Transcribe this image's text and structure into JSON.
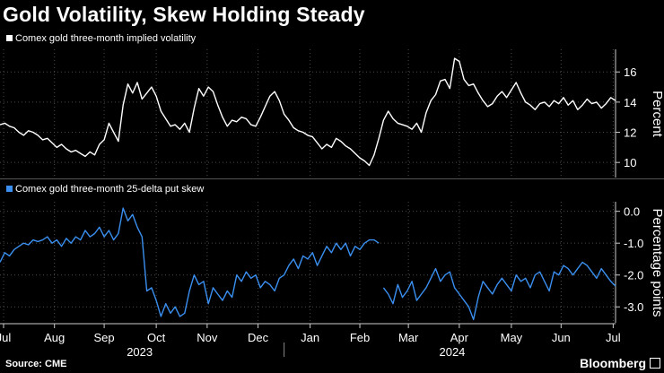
{
  "title": "Gold Volatility, Skew Holding Steady",
  "source": "Source: CME",
  "brand": "Bloomberg",
  "colors": {
    "background": "#000000",
    "series1": "#ffffff",
    "series2": "#3a8ff0",
    "grid": "#4a4a4a",
    "axis": "#cccccc"
  },
  "chart_data": [
    {
      "type": "line",
      "legend": "Comex gold three-month implied volatility",
      "ylabel": "Percent",
      "ylim": [
        9,
        17.5
      ],
      "yticks": [
        10,
        12,
        14,
        16
      ],
      "ytick_labels": [
        "10",
        "12",
        "14",
        "16"
      ],
      "x": [
        0,
        2,
        4,
        6,
        8,
        10,
        12,
        14,
        16,
        18,
        20,
        22,
        24,
        26,
        28,
        30,
        32,
        34,
        36,
        38,
        40,
        42,
        44,
        46,
        48,
        50,
        52,
        54,
        56,
        58,
        60,
        62,
        64,
        66,
        68,
        70,
        72,
        74,
        76,
        78,
        80,
        82,
        84,
        86,
        88,
        90,
        92,
        94,
        96,
        98,
        100,
        102,
        104,
        106,
        108,
        110,
        112,
        114,
        116,
        118,
        120,
        122,
        124,
        126,
        128,
        130,
        132,
        134,
        136,
        138,
        140,
        142,
        144,
        146,
        148,
        150,
        152,
        154,
        156,
        158,
        160,
        162,
        164,
        166,
        168,
        170,
        172,
        174,
        176,
        178,
        180,
        182,
        184,
        186,
        188,
        190,
        192,
        194,
        196,
        198,
        200,
        202,
        204,
        206,
        208,
        210,
        212,
        214,
        216,
        218,
        220,
        222,
        224,
        226,
        228,
        230,
        232,
        234,
        236,
        238,
        240,
        242,
        244,
        246,
        248,
        250,
        252,
        254,
        256,
        258,
        260
      ],
      "values": [
        12.5,
        12.6,
        12.4,
        12.3,
        12.0,
        11.8,
        12.1,
        12.0,
        11.8,
        11.5,
        11.6,
        11.3,
        11.0,
        11.2,
        10.9,
        10.7,
        10.8,
        10.6,
        10.4,
        10.7,
        10.5,
        11.2,
        11.5,
        12.6,
        12.0,
        11.4,
        13.8,
        15.2,
        14.6,
        15.3,
        14.2,
        14.6,
        15.0,
        14.4,
        13.4,
        12.9,
        12.4,
        12.5,
        12.2,
        12.6,
        12.0,
        13.6,
        14.9,
        14.4,
        15.0,
        14.7,
        13.8,
        13.0,
        12.4,
        12.8,
        12.7,
        13.0,
        12.9,
        12.5,
        12.4,
        13.0,
        13.7,
        14.4,
        14.7,
        14.1,
        13.2,
        12.8,
        12.3,
        12.1,
        12.0,
        11.8,
        11.7,
        11.3,
        10.9,
        11.2,
        11.0,
        11.6,
        11.4,
        11.1,
        10.9,
        10.6,
        10.3,
        10.1,
        9.8,
        10.5,
        11.6,
        12.8,
        13.4,
        12.9,
        12.6,
        12.5,
        12.4,
        12.2,
        12.6,
        12.0,
        13.3,
        14.1,
        14.5,
        15.4,
        15.5,
        14.9,
        16.9,
        16.7,
        15.5,
        15.1,
        15.2,
        14.6,
        14.1,
        13.7,
        13.9,
        14.4,
        14.7,
        14.3,
        14.8,
        15.3,
        14.6,
        14.0,
        13.8,
        13.5,
        13.9,
        14.0,
        13.7,
        14.1,
        13.9,
        14.3,
        13.8,
        14.1,
        13.5,
        13.8,
        14.2,
        13.9,
        14.0,
        13.6,
        13.9,
        14.3,
        14.1
      ]
    },
    {
      "type": "line",
      "legend": "Comex gold three-month 25-delta put skew",
      "ylabel": "Percentage points",
      "ylim": [
        -3.5,
        0.3
      ],
      "yticks": [
        0,
        -1,
        -2,
        -3
      ],
      "ytick_labels": [
        "0.0",
        "-1.0",
        "-2.0",
        "-3.0"
      ],
      "x": [
        0,
        2,
        4,
        6,
        8,
        10,
        12,
        14,
        16,
        18,
        20,
        22,
        24,
        26,
        28,
        30,
        32,
        34,
        36,
        38,
        40,
        42,
        44,
        46,
        48,
        50,
        52,
        54,
        56,
        58,
        60,
        62,
        64,
        66,
        68,
        70,
        72,
        74,
        76,
        78,
        80,
        82,
        84,
        86,
        88,
        90,
        92,
        94,
        96,
        98,
        100,
        102,
        104,
        106,
        108,
        110,
        112,
        114,
        116,
        118,
        120,
        122,
        124,
        126,
        128,
        130,
        132,
        134,
        136,
        138,
        140,
        142,
        144,
        146,
        148,
        150,
        152,
        154,
        156,
        158,
        160,
        162,
        164,
        166,
        168,
        170,
        172,
        174,
        176,
        178,
        180,
        182,
        184,
        186,
        188,
        190,
        192,
        194,
        196,
        198,
        200,
        202,
        204,
        206,
        208,
        210,
        212,
        214,
        216,
        218,
        220,
        222,
        224,
        226,
        228,
        230,
        232,
        234,
        236,
        238,
        240,
        242,
        244,
        246,
        248,
        250,
        252,
        254,
        256,
        258,
        260
      ],
      "values": [
        -1.6,
        -1.3,
        -1.4,
        -1.2,
        -1.1,
        -1.0,
        -1.05,
        -0.9,
        -0.95,
        -0.9,
        -0.8,
        -1.0,
        -0.9,
        -1.1,
        -0.85,
        -1.0,
        -0.8,
        -0.9,
        -0.6,
        -0.8,
        -0.7,
        -0.5,
        -0.8,
        -0.6,
        -0.9,
        -0.7,
        0.1,
        -0.3,
        -0.1,
        -0.5,
        -0.8,
        -2.5,
        -2.4,
        -2.8,
        -3.3,
        -2.9,
        -3.2,
        -3.0,
        -3.3,
        -3.2,
        -2.5,
        -2.0,
        -2.3,
        -2.2,
        -2.9,
        -2.4,
        -2.6,
        -2.8,
        -2.5,
        -2.7,
        -2.0,
        -2.2,
        -1.9,
        -2.1,
        -2.0,
        -2.4,
        -2.2,
        -2.3,
        -2.5,
        -2.1,
        -2.0,
        -1.7,
        -1.5,
        -1.8,
        -1.4,
        -1.5,
        -1.3,
        -1.7,
        -1.4,
        -1.1,
        -1.3,
        -1.0,
        -1.2,
        -1.0,
        -1.4,
        -1.1,
        -1.2,
        -1.0,
        -0.9,
        -0.9,
        -1.0,
        -2.4,
        -2.6,
        -2.9,
        -2.3,
        -2.7,
        -2.5,
        -2.2,
        -2.8,
        -2.6,
        -2.4,
        -2.1,
        -1.8,
        -2.2,
        -2.0,
        -1.9,
        -2.4,
        -2.6,
        -2.8,
        -3.0,
        -3.4,
        -2.7,
        -2.2,
        -2.4,
        -2.6,
        -2.3,
        -2.1,
        -2.3,
        -2.5,
        -2.0,
        -2.2,
        -2.1,
        -2.4,
        -2.0,
        -1.9,
        -2.2,
        -2.5,
        -1.9,
        -2.0,
        -1.7,
        -1.8,
        -2.0,
        -1.8,
        -1.6,
        -1.7,
        -1.9,
        -2.1,
        -1.8,
        -2.0,
        -2.2,
        -2.35
      ],
      "line_gap_after_index": 80
    }
  ],
  "x_axis": {
    "labels": [
      "Jul",
      "Aug",
      "Sep",
      "Oct",
      "Nov",
      "Dec",
      "Jan",
      "Feb",
      "Mar",
      "Apr",
      "May",
      "Jun",
      "Jul"
    ],
    "label_positions": [
      1.5,
      23,
      44,
      66,
      87.5,
      109,
      131,
      152,
      172.5,
      194,
      216,
      237,
      259
    ],
    "year_labels": [
      "2023",
      "2024"
    ],
    "year_positions": [
      59,
      191
    ],
    "year_divider": 120
  }
}
